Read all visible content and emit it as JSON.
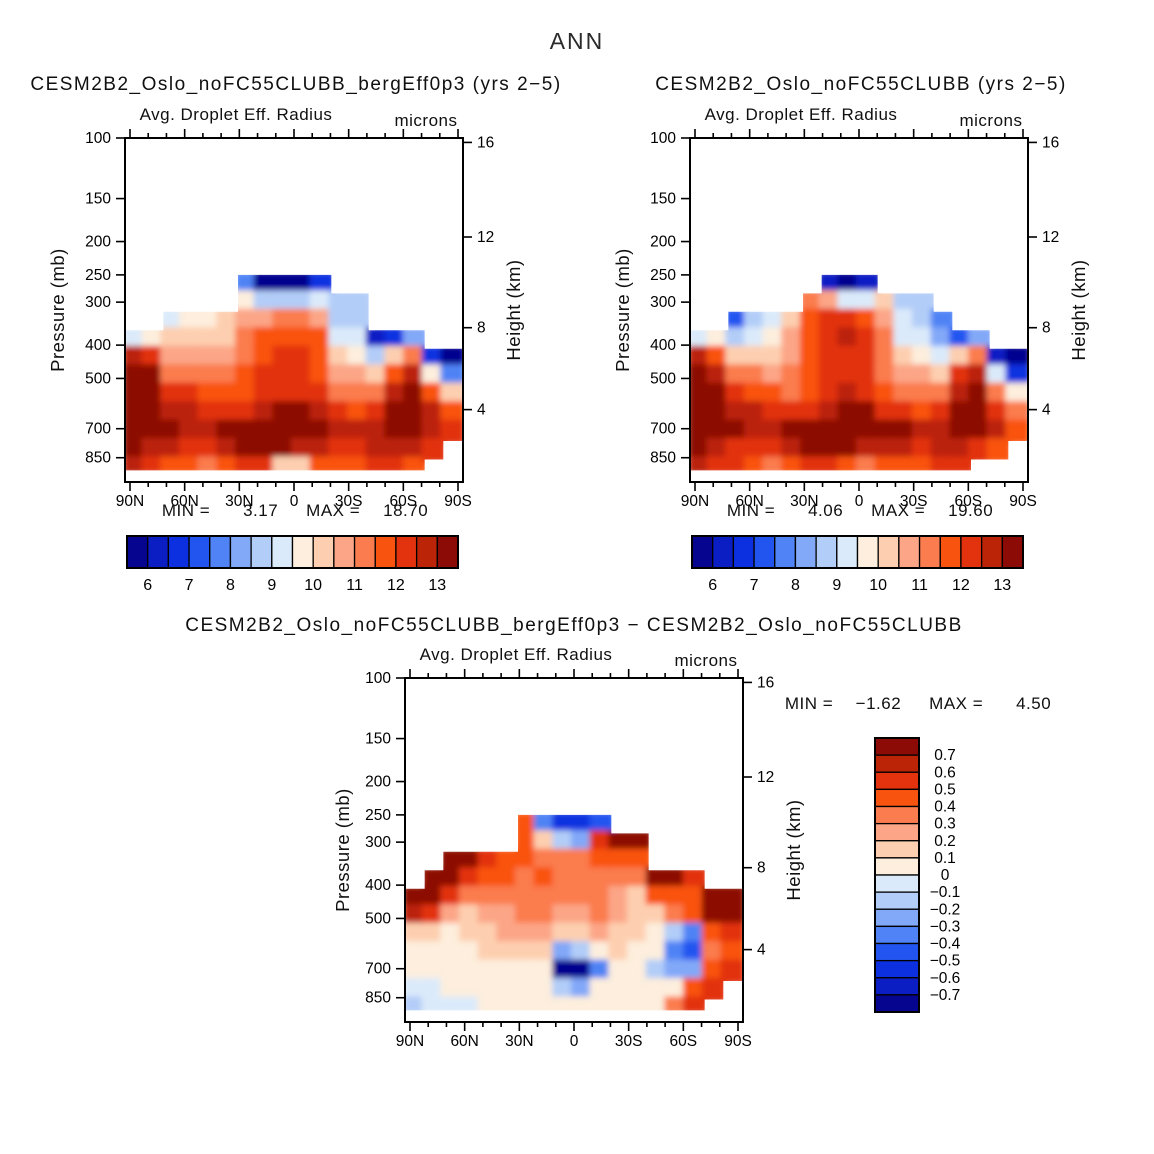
{
  "page": {
    "title": "ANN"
  },
  "colors": {
    "frame": "#000000",
    "text": "#101010",
    "palette16": [
      "#05058f",
      "#0b1ec4",
      "#0c30e0",
      "#2254f0",
      "#5083f5",
      "#82a8f8",
      "#b2cdf8",
      "#dbeafa",
      "#fdeedd",
      "#fdcfb0",
      "#fca687",
      "#fb7c4e",
      "#f95310",
      "#e2330e",
      "#bb2407",
      "#8c0b06"
    ]
  },
  "chart_data": [
    {
      "type": "filled_contour",
      "title": "CESM2B2_Oslo_noFC55CLUBB_bergEff0p3 (yrs 2−5)",
      "subtitle": "Avg. Droplet Eff. Radius",
      "units": "microns",
      "ylabel_left": "Pressure (mb)",
      "ylabel_right": "Height (km)",
      "x_axis": {
        "min_lat": 90,
        "max_lat": -90
      },
      "y_axis": {
        "pressure_range_mb": [
          100,
          1000
        ],
        "scale": "log"
      },
      "x_ticks": [
        {
          "label": "90N",
          "lat": 90
        },
        {
          "label": "60N",
          "lat": 60
        },
        {
          "label": "30N",
          "lat": 30
        },
        {
          "label": "0",
          "lat": 0
        },
        {
          "label": "30S",
          "lat": -30
        },
        {
          "label": "60S",
          "lat": -60
        },
        {
          "label": "90S",
          "lat": -90
        }
      ],
      "y_ticks_pressure": [
        100,
        150,
        200,
        250,
        300,
        400,
        500,
        700,
        850
      ],
      "y_ticks_height": [
        {
          "km": "16",
          "p": 103
        },
        {
          "km": "12",
          "p": 194
        },
        {
          "km": "8",
          "p": 356
        },
        {
          "km": "4",
          "p": 616
        }
      ],
      "stats": {
        "min_label": "MIN =",
        "min_value": "3.17",
        "max_label": "MAX =",
        "max_value": "18.70"
      },
      "colorbar": {
        "orientation": "horizontal",
        "level_min": 5.5,
        "level_step": 0.5,
        "open_ended": false,
        "tick_labels": [
          "6",
          "7",
          "8",
          "9",
          "10",
          "11",
          "12",
          "13"
        ]
      },
      "grid": {
        "lat_start_edge": 90,
        "lat_col_width_deg": 10,
        "p_edges": [
          250,
          283,
          320,
          362,
          410,
          464,
          525,
          594,
          672,
          760,
          860,
          925
        ],
        "values_by_column": [
          [
            null,
            null,
            null,
            9.0,
            12.8,
            13.5,
            13.5,
            13.5,
            13.5,
            13.2,
            12.8
          ],
          [
            null,
            null,
            null,
            9.8,
            12.0,
            13.0,
            13.4,
            13.5,
            13.3,
            12.6,
            12.2
          ],
          [
            null,
            null,
            9.3,
            10.0,
            10.6,
            11.4,
            12.2,
            12.8,
            13.0,
            12.5,
            11.9
          ],
          [
            null,
            null,
            9.6,
            10.0,
            10.5,
            11.2,
            12.0,
            12.6,
            12.9,
            12.3,
            11.6
          ],
          [
            null,
            null,
            9.8,
            10.2,
            10.5,
            11.0,
            11.6,
            12.3,
            12.8,
            12.2,
            11.4
          ],
          [
            null,
            null,
            10.0,
            10.4,
            10.6,
            11.0,
            11.5,
            12.2,
            13.0,
            12.8,
            11.8
          ],
          [
            7.5,
            9.8,
            10.5,
            11.0,
            11.3,
            11.6,
            11.9,
            12.4,
            13.2,
            13.0,
            12.1
          ],
          [
            5.7,
            8.8,
            10.8,
            11.5,
            11.8,
            12.0,
            12.1,
            12.5,
            13.4,
            13.2,
            12.3
          ],
          [
            5.6,
            8.5,
            11.0,
            11.8,
            12.0,
            12.2,
            12.4,
            13.0,
            13.5,
            13.0,
            10.4
          ],
          [
            5.8,
            8.6,
            11.2,
            11.9,
            12.1,
            12.2,
            12.4,
            13.1,
            13.5,
            12.8,
            10.2
          ],
          [
            6.5,
            9.0,
            10.8,
            11.5,
            11.8,
            11.9,
            12.0,
            12.6,
            13.2,
            12.6,
            11.5
          ],
          [
            null,
            8.6,
            8.9,
            9.4,
            10.2,
            10.9,
            11.4,
            12.0,
            12.6,
            12.2,
            11.6
          ],
          [
            null,
            8.8,
            8.8,
            9.2,
            9.8,
            10.6,
            11.2,
            11.9,
            12.5,
            12.3,
            11.8
          ],
          [
            null,
            null,
            null,
            6.2,
            8.9,
            10.4,
            11.4,
            12.2,
            12.9,
            12.7,
            12.1
          ],
          [
            null,
            null,
            null,
            6.5,
            10.0,
            11.8,
            12.8,
            13.4,
            13.4,
            12.9,
            12.2
          ],
          [
            null,
            null,
            null,
            8.0,
            11.0,
            12.6,
            13.3,
            13.5,
            13.2,
            12.5,
            11.8
          ],
          [
            null,
            null,
            null,
            null,
            6.5,
            9.5,
            11.5,
            12.5,
            12.8,
            12.0,
            null
          ],
          [
            null,
            null,
            null,
            null,
            5.8,
            7.5,
            10.0,
            11.5,
            12.0,
            null,
            null
          ]
        ]
      }
    },
    {
      "type": "filled_contour",
      "title": "CESM2B2_Oslo_noFC55CLUBB (yrs 2−5)",
      "subtitle": "Avg. Droplet Eff. Radius",
      "units": "microns",
      "ylabel_left": "Pressure (mb)",
      "ylabel_right": "Height (km)",
      "x_axis": {
        "min_lat": 90,
        "max_lat": -90
      },
      "y_axis": {
        "pressure_range_mb": [
          100,
          1000
        ],
        "scale": "log"
      },
      "x_ticks": [
        {
          "label": "90N",
          "lat": 90
        },
        {
          "label": "60N",
          "lat": 60
        },
        {
          "label": "30N",
          "lat": 30
        },
        {
          "label": "0",
          "lat": 0
        },
        {
          "label": "30S",
          "lat": -30
        },
        {
          "label": "60S",
          "lat": -60
        },
        {
          "label": "90S",
          "lat": -90
        }
      ],
      "y_ticks_pressure": [
        100,
        150,
        200,
        250,
        300,
        400,
        500,
        700,
        850
      ],
      "y_ticks_height": [
        {
          "km": "16",
          "p": 103
        },
        {
          "km": "12",
          "p": 194
        },
        {
          "km": "8",
          "p": 356
        },
        {
          "km": "4",
          "p": 616
        }
      ],
      "stats": {
        "min_label": "MIN =",
        "min_value": "4.06",
        "max_label": "MAX =",
        "max_value": "19.60"
      },
      "colorbar": {
        "orientation": "horizontal",
        "level_min": 5.5,
        "level_step": 0.5,
        "open_ended": false,
        "tick_labels": [
          "6",
          "7",
          "8",
          "9",
          "10",
          "11",
          "12",
          "13"
        ]
      },
      "grid": {
        "lat_start_edge": 90,
        "lat_col_width_deg": 10,
        "p_edges": [
          250,
          283,
          320,
          362,
          410,
          464,
          525,
          594,
          672,
          760,
          860,
          925
        ],
        "values_by_column": [
          [
            null,
            null,
            null,
            9.2,
            12.5,
            13.4,
            13.5,
            13.5,
            13.4,
            13.0,
            12.6
          ],
          [
            null,
            null,
            null,
            9.6,
            11.5,
            12.6,
            13.2,
            13.4,
            13.2,
            12.5,
            12.4
          ],
          [
            null,
            null,
            7.2,
            8.8,
            10.4,
            11.2,
            12.0,
            12.7,
            13.0,
            12.4,
            12.0
          ],
          [
            null,
            null,
            8.6,
            9.4,
            10.3,
            11.0,
            11.8,
            12.5,
            12.9,
            12.2,
            11.6
          ],
          [
            null,
            null,
            9.4,
            9.9,
            10.3,
            10.8,
            11.5,
            12.2,
            12.9,
            12.3,
            11.4
          ],
          [
            null,
            null,
            10.2,
            10.8,
            10.8,
            11.0,
            11.4,
            12.1,
            13.0,
            12.9,
            11.9
          ],
          [
            null,
            11.3,
            11.6,
            11.7,
            11.6,
            11.6,
            11.8,
            12.4,
            13.3,
            13.1,
            12.2
          ],
          [
            6.2,
            10.5,
            12.0,
            12.2,
            12.0,
            12.0,
            12.1,
            12.6,
            13.5,
            13.3,
            12.4
          ],
          [
            5.7,
            9.0,
            12.2,
            12.5,
            12.3,
            12.3,
            12.5,
            13.2,
            13.5,
            13.1,
            11.5
          ],
          [
            6.0,
            9.2,
            11.8,
            12.2,
            12.1,
            12.1,
            12.4,
            13.2,
            13.5,
            12.9,
            11.0
          ],
          [
            null,
            10.0,
            10.6,
            11.0,
            11.2,
            11.4,
            11.7,
            12.4,
            13.4,
            12.8,
            11.6
          ],
          [
            null,
            8.8,
            9.0,
            9.4,
            10.1,
            10.8,
            11.3,
            12.0,
            13.0,
            12.5,
            11.8
          ],
          [
            null,
            8.9,
            8.8,
            9.2,
            9.8,
            10.5,
            11.1,
            11.8,
            12.6,
            12.4,
            11.9
          ],
          [
            null,
            null,
            7.8,
            8.0,
            9.0,
            10.2,
            11.2,
            12.1,
            12.9,
            12.7,
            12.1
          ],
          [
            null,
            null,
            null,
            7.0,
            10.2,
            12.0,
            12.9,
            13.4,
            13.4,
            12.9,
            12.2
          ],
          [
            null,
            null,
            null,
            8.2,
            11.2,
            12.8,
            13.4,
            13.5,
            13.2,
            12.4,
            null
          ],
          [
            null,
            null,
            null,
            null,
            6.2,
            9.0,
            11.3,
            12.4,
            12.6,
            11.8,
            null
          ],
          [
            null,
            null,
            null,
            null,
            5.6,
            6.8,
            9.5,
            11.0,
            11.5,
            null,
            null
          ]
        ]
      }
    },
    {
      "type": "filled_contour",
      "title": "CESM2B2_Oslo_noFC55CLUBB_bergEff0p3 − CESM2B2_Oslo_noFC55CLUBB",
      "subtitle": "Avg. Droplet Eff. Radius",
      "units": "microns",
      "ylabel_left": "Pressure (mb)",
      "ylabel_right": "Height (km)",
      "x_axis": {
        "min_lat": 90,
        "max_lat": -90
      },
      "y_axis": {
        "pressure_range_mb": [
          100,
          1000
        ],
        "scale": "log"
      },
      "x_ticks": [
        {
          "label": "90N",
          "lat": 90
        },
        {
          "label": "60N",
          "lat": 60
        },
        {
          "label": "30N",
          "lat": 30
        },
        {
          "label": "0",
          "lat": 0
        },
        {
          "label": "30S",
          "lat": -30
        },
        {
          "label": "60S",
          "lat": -60
        },
        {
          "label": "90S",
          "lat": -90
        }
      ],
      "y_ticks_pressure": [
        100,
        150,
        200,
        250,
        300,
        400,
        500,
        700,
        850
      ],
      "y_ticks_height": [
        {
          "km": "16",
          "p": 103
        },
        {
          "km": "12",
          "p": 194
        },
        {
          "km": "8",
          "p": 356
        },
        {
          "km": "4",
          "p": 616
        }
      ],
      "stats": {
        "min_label": "MIN =",
        "min_value": "−1.62",
        "max_label": "MAX =",
        "max_value": "4.50"
      },
      "colorbar": {
        "orientation": "vertical",
        "level_min": -0.7,
        "level_step": 0.1,
        "open_ended": true,
        "tick_labels": [
          "0.7",
          "0.6",
          "0.5",
          "0.4",
          "0.3",
          "0.2",
          "0.1",
          "0",
          "−0.1",
          "−0.2",
          "−0.3",
          "−0.4",
          "−0.5",
          "−0.6",
          "−0.7"
        ]
      },
      "grid": {
        "lat_start_edge": 90,
        "lat_col_width_deg": 10,
        "p_edges": [
          250,
          283,
          320,
          362,
          410,
          464,
          525,
          594,
          672,
          760,
          860,
          925
        ],
        "values_by_column": [
          [
            null,
            null,
            null,
            null,
            0.75,
            0.7,
            0.2,
            0.05,
            0.02,
            -0.02,
            -0.1
          ],
          [
            null,
            null,
            null,
            0.75,
            0.75,
            0.55,
            0.15,
            0.05,
            0.02,
            0.0,
            -0.05
          ],
          [
            null,
            null,
            0.75,
            0.75,
            0.55,
            0.25,
            0.1,
            0.05,
            0.03,
            0.02,
            -0.03
          ],
          [
            null,
            null,
            0.75,
            0.55,
            0.3,
            0.2,
            0.12,
            0.08,
            0.05,
            0.02,
            0.0
          ],
          [
            null,
            null,
            0.6,
            0.4,
            0.3,
            0.25,
            0.18,
            0.12,
            0.08,
            0.05,
            0.02
          ],
          [
            null,
            null,
            0.45,
            0.4,
            0.32,
            0.28,
            0.22,
            0.15,
            0.1,
            0.06,
            0.04
          ],
          [
            0.5,
            0.45,
            0.4,
            0.35,
            0.3,
            0.3,
            0.25,
            0.15,
            0.1,
            0.08,
            0.05
          ],
          [
            -0.3,
            0.2,
            0.35,
            0.4,
            0.35,
            0.3,
            0.25,
            0.2,
            0.1,
            0.05,
            0.02
          ],
          [
            -0.5,
            -0.15,
            0.3,
            0.35,
            0.3,
            0.25,
            0.2,
            -0.2,
            -0.75,
            -0.1,
            0.1
          ],
          [
            -0.55,
            -0.2,
            0.3,
            0.35,
            0.3,
            0.25,
            0.2,
            -0.15,
            -0.75,
            -0.2,
            0.05
          ],
          [
            -0.45,
            0.6,
            0.4,
            0.35,
            0.3,
            0.3,
            0.25,
            0.1,
            -0.35,
            0.05,
            0.05
          ],
          [
            null,
            0.75,
            0.45,
            0.3,
            0.25,
            0.25,
            0.2,
            0.15,
            0.1,
            0.05,
            0.03
          ],
          [
            null,
            0.75,
            0.5,
            0.3,
            0.2,
            0.15,
            0.15,
            0.1,
            0.1,
            0.05,
            0.05
          ],
          [
            null,
            null,
            null,
            0.75,
            0.4,
            0.2,
            0.1,
            0.05,
            -0.1,
            0.05,
            0.1
          ],
          [
            null,
            null,
            null,
            0.75,
            0.5,
            0.3,
            -0.15,
            -0.3,
            -0.25,
            0.1,
            0.3
          ],
          [
            null,
            null,
            null,
            0.6,
            0.5,
            0.4,
            -0.3,
            -0.4,
            -0.2,
            0.4,
            0.6
          ],
          [
            null,
            null,
            null,
            null,
            0.75,
            0.75,
            0.5,
            0.3,
            0.5,
            0.6,
            null
          ],
          [
            null,
            null,
            null,
            null,
            0.75,
            0.75,
            0.6,
            0.5,
            0.6,
            null,
            null
          ]
        ]
      }
    }
  ]
}
